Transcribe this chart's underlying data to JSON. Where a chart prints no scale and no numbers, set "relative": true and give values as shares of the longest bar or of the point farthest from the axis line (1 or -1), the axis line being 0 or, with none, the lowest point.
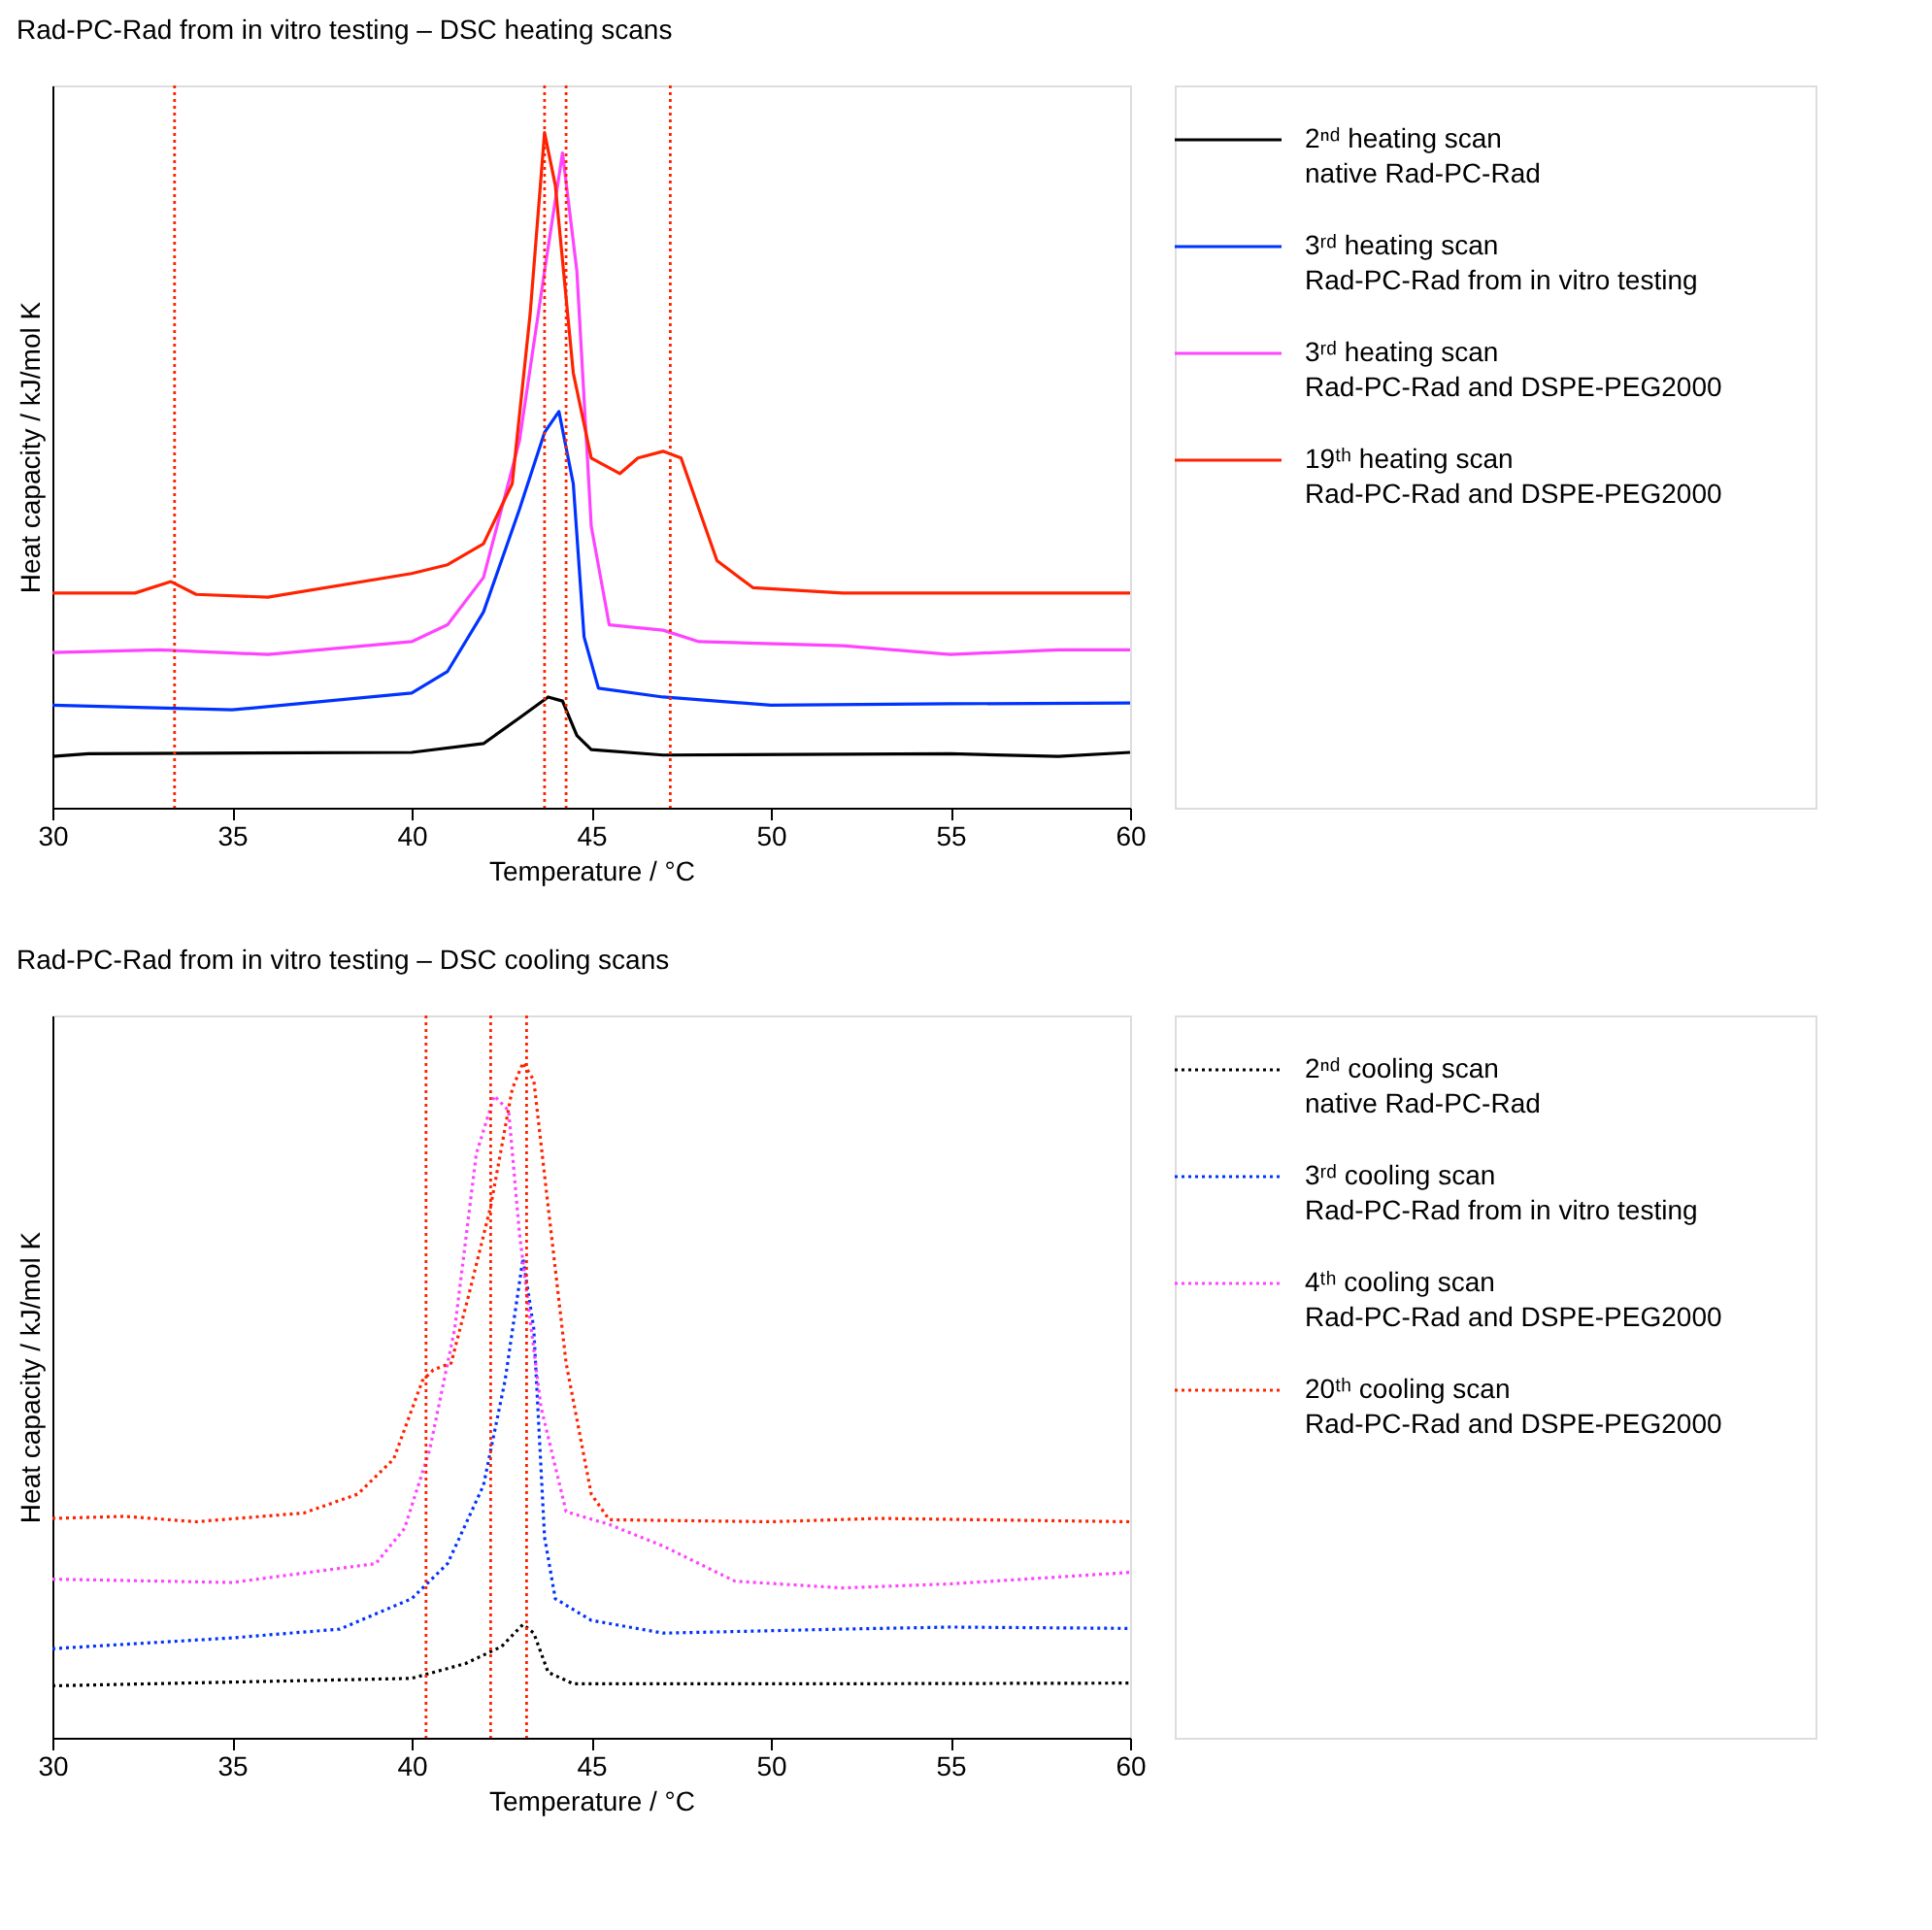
{
  "chart_data": [
    {
      "type": "line",
      "title": "Rad-PC-Rad from in vitro testing – DSC heating scans",
      "xlabel": "Temperature / °C",
      "ylabel": "Heat capacity / kJ/mol K",
      "relative": true,
      "xlim": [
        30,
        60
      ],
      "xticks": [
        30,
        35,
        40,
        45,
        50,
        55,
        60
      ],
      "line_style": "solid",
      "marker": "none",
      "grid": false,
      "legend": "right",
      "series": [
        {
          "name": "2ⁿᵈ heating scan\nnative Rad-PC-Rad",
          "color": "#000000",
          "x": [
            30,
            31,
            40,
            42,
            43,
            43.8,
            44.2,
            44.6,
            45,
            47,
            55,
            58,
            60
          ],
          "values": [
            0.076,
            0.08,
            0.082,
            0.095,
            0.133,
            0.164,
            0.158,
            0.107,
            0.086,
            0.078,
            0.08,
            0.076,
            0.082
          ]
        },
        {
          "name": "3ʳᵈ heating scan\nRad-PC-Rad from in vitro testing",
          "color": "#0033ff",
          "x": [
            30,
            35,
            40,
            41,
            42,
            43,
            43.7,
            44.1,
            44.5,
            44.8,
            45.2,
            47,
            50,
            55,
            60
          ],
          "values": [
            0.152,
            0.145,
            0.17,
            0.202,
            0.29,
            0.442,
            0.556,
            0.587,
            0.48,
            0.253,
            0.177,
            0.164,
            0.152,
            0.154,
            0.155
          ]
        },
        {
          "name": "3ʳᵈ heating scan\nRad-PC-Rad and DSPE-PEG2000",
          "color": "#ff44ff",
          "x": [
            30,
            33,
            36,
            40,
            41,
            42,
            43,
            43.7,
            44.2,
            44.6,
            45,
            45.5,
            47,
            48,
            52,
            55,
            58,
            60
          ],
          "values": [
            0.23,
            0.234,
            0.227,
            0.246,
            0.271,
            0.341,
            0.543,
            0.795,
            0.97,
            0.795,
            0.417,
            0.271,
            0.263,
            0.246,
            0.24,
            0.227,
            0.234,
            0.234
          ]
        },
        {
          "name": "19ᵗʰ heating scan\nRad-PC-Rad and DSPE-PEG2000",
          "color": "#ff2200",
          "x": [
            30,
            32.3,
            33.3,
            34,
            36,
            40,
            41,
            42,
            42.8,
            43.3,
            43.7,
            44,
            44.5,
            45,
            45.8,
            46.3,
            47,
            47.5,
            48,
            48.5,
            49.5,
            52,
            60
          ],
          "values": [
            0.318,
            0.318,
            0.335,
            0.316,
            0.312,
            0.347,
            0.36,
            0.391,
            0.48,
            0.732,
            1,
            0.922,
            0.644,
            0.518,
            0.495,
            0.518,
            0.528,
            0.518,
            0.442,
            0.366,
            0.326,
            0.318,
            0.318
          ]
        }
      ],
      "ref_lines": [
        {
          "axis": "x",
          "value": 33.4,
          "color": "#ff2200",
          "line_style": "dotted"
        },
        {
          "axis": "x",
          "value": 43.7,
          "color": "#ff2200",
          "line_style": "dotted"
        },
        {
          "axis": "x",
          "value": 44.3,
          "color": "#ff2200",
          "line_style": "dotted"
        },
        {
          "axis": "x",
          "value": 47.2,
          "color": "#ff2200",
          "line_style": "dotted"
        }
      ]
    },
    {
      "type": "line",
      "title": "Rad-PC-Rad from in vitro testing – DSC cooling scans",
      "xlabel": "Temperature / °C",
      "ylabel": "Heat capacity / kJ/mol K",
      "relative": true,
      "xlim": [
        30,
        60
      ],
      "xticks": [
        30,
        35,
        40,
        45,
        50,
        55,
        60
      ],
      "line_style": "dotted",
      "marker": "none",
      "grid": false,
      "legend": "right",
      "series": [
        {
          "name": "2ⁿᵈ cooling scan\nnative Rad-PC-Rad",
          "color": "#000000",
          "x": [
            30,
            40,
            41.5,
            42.5,
            43.1,
            43.4,
            43.8,
            44.5,
            52,
            60
          ],
          "values": [
            0.077,
            0.088,
            0.11,
            0.135,
            0.168,
            0.155,
            0.097,
            0.08,
            0.08,
            0.081
          ]
        },
        {
          "name": "3ʳᵈ cooling scan\nRad-PC-Rad from in vitro testing",
          "color": "#0033ff",
          "x": [
            30,
            35,
            38,
            40,
            41,
            42,
            42.6,
            43.1,
            43.4,
            43.7,
            44,
            45,
            47,
            52,
            55,
            60
          ],
          "values": [
            0.132,
            0.148,
            0.161,
            0.206,
            0.258,
            0.374,
            0.529,
            0.71,
            0.606,
            0.297,
            0.206,
            0.174,
            0.155,
            0.161,
            0.164,
            0.162
          ]
        },
        {
          "name": "4ᵗʰ cooling scan\nRad-PC-Rad and DSPE-PEG2000",
          "color": "#ff44ff",
          "x": [
            30,
            35,
            39,
            39.8,
            40.5,
            41.2,
            41.8,
            42.3,
            42.7,
            43,
            43.6,
            44.3,
            45.5,
            47,
            49,
            52,
            55,
            60
          ],
          "values": [
            0.235,
            0.23,
            0.258,
            0.31,
            0.426,
            0.606,
            0.865,
            0.951,
            0.929,
            0.748,
            0.49,
            0.335,
            0.316,
            0.284,
            0.232,
            0.222,
            0.228,
            0.245
          ]
        },
        {
          "name": "20ᵗʰ cooling scan\nRad-PC-Rad and DSPE-PEG2000",
          "color": "#ff2200",
          "x": [
            30,
            32,
            34,
            37,
            38.5,
            39.5,
            40.3,
            40.6,
            41.1,
            41.6,
            42.2,
            42.8,
            43.1,
            43.4,
            43.8,
            44.3,
            45,
            45.5,
            50,
            53,
            60
          ],
          "values": [
            0.325,
            0.328,
            0.32,
            0.333,
            0.361,
            0.413,
            0.529,
            0.545,
            0.555,
            0.658,
            0.787,
            0.961,
            1,
            0.974,
            0.787,
            0.555,
            0.361,
            0.323,
            0.32,
            0.325,
            0.32
          ]
        }
      ],
      "ref_lines": [
        {
          "axis": "x",
          "value": 40.4,
          "color": "#ff2200",
          "line_style": "dotted"
        },
        {
          "axis": "x",
          "value": 42.2,
          "color": "#ff2200",
          "line_style": "dotted"
        },
        {
          "axis": "x",
          "value": 43.2,
          "color": "#ff2200",
          "line_style": "dotted"
        }
      ]
    }
  ]
}
